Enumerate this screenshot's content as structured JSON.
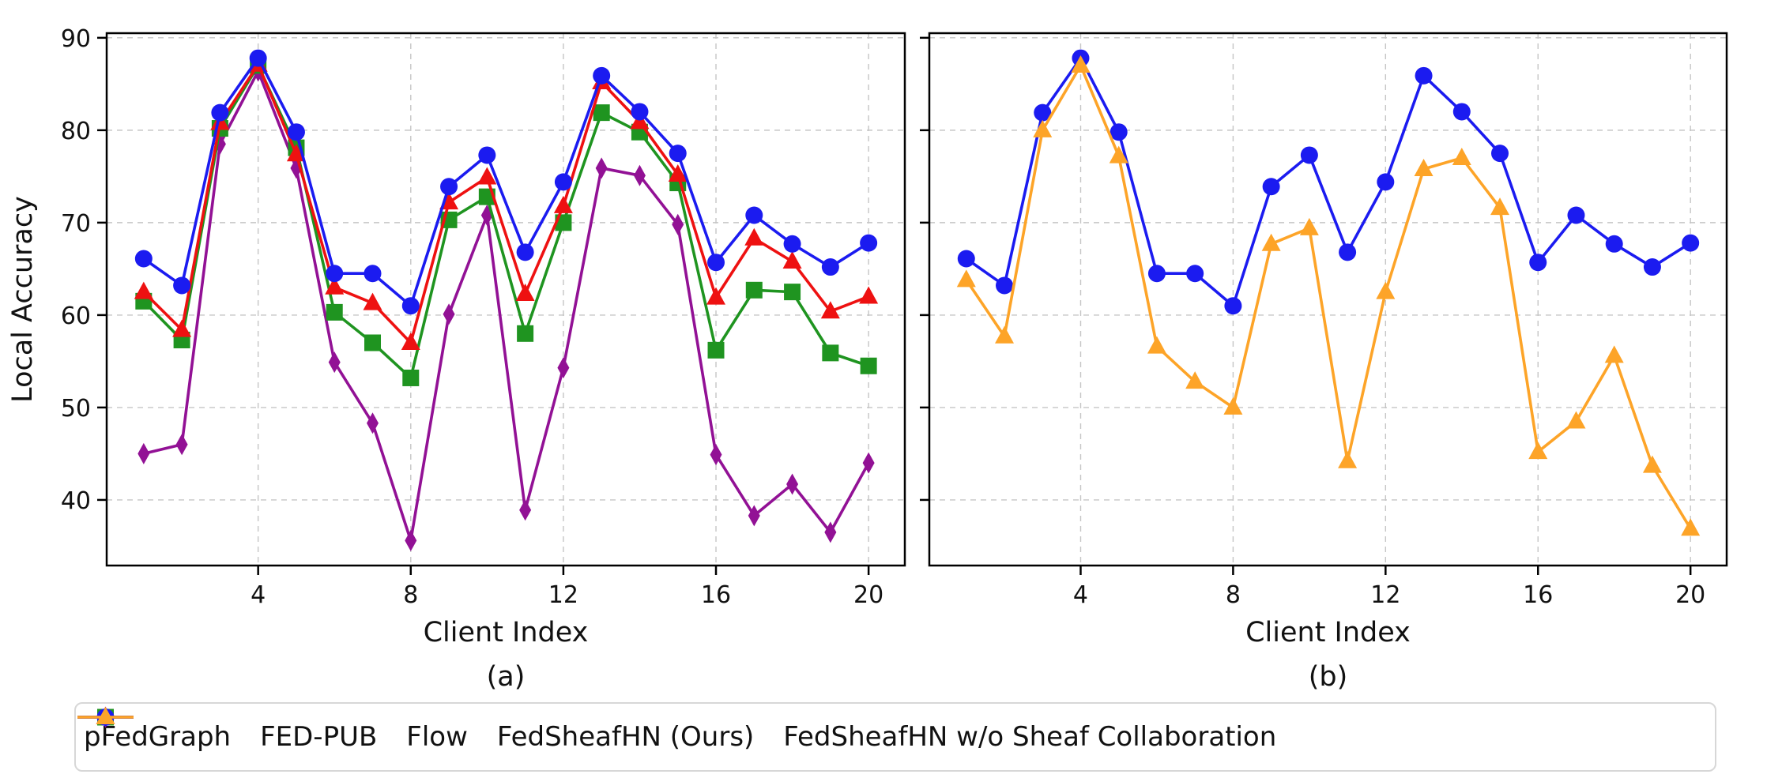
{
  "figure": {
    "ylabel": "Local Accuracy",
    "xlabel": "Client Index"
  },
  "chart_data": [
    {
      "type": "line",
      "subplot_label": "(a)",
      "xlabel": "Client Index",
      "ylabel": "Local Accuracy",
      "x": [
        1,
        2,
        3,
        4,
        5,
        6,
        7,
        8,
        9,
        10,
        11,
        12,
        13,
        14,
        15,
        16,
        17,
        18,
        19,
        20
      ],
      "xticks": [
        4,
        8,
        12,
        16,
        20
      ],
      "yticks": [
        40,
        50,
        60,
        70,
        80,
        90
      ],
      "xlim": [
        0.03,
        20.95
      ],
      "ylim": [
        32.9,
        90.5
      ],
      "grid": true,
      "show_ytick_labels": true,
      "series": [
        {
          "name": "pFedGraph",
          "color": "#921195",
          "marker": "thin-diamond",
          "values": [
            45.0,
            46.0,
            78.5,
            86.4,
            75.9,
            54.9,
            48.3,
            35.6,
            60.1,
            70.8,
            38.9,
            54.3,
            75.9,
            75.1,
            69.8,
            44.9,
            38.3,
            41.7,
            36.5,
            44.0
          ]
        },
        {
          "name": "FED-PUB",
          "color": "#1f9420",
          "marker": "square",
          "values": [
            61.5,
            57.3,
            80.2,
            87.0,
            78.1,
            60.3,
            57.0,
            53.2,
            70.3,
            72.8,
            58.0,
            70.0,
            81.9,
            79.8,
            74.3,
            56.2,
            62.7,
            62.5,
            55.9,
            54.5
          ]
        },
        {
          "name": "Flow",
          "color": "#ee1111",
          "marker": "triangle",
          "values": [
            62.5,
            58.4,
            80.8,
            87.1,
            77.4,
            63.0,
            61.3,
            57.0,
            72.2,
            74.9,
            62.3,
            71.8,
            85.2,
            80.9,
            75.2,
            61.9,
            68.3,
            65.8,
            60.4,
            62.0
          ]
        },
        {
          "name": "FedSheafHN (Ours)",
          "color": "#1b1bf0",
          "marker": "circle",
          "values": [
            66.1,
            63.2,
            81.9,
            87.8,
            79.8,
            64.5,
            64.5,
            61.0,
            73.9,
            77.3,
            66.8,
            74.4,
            85.9,
            82.0,
            77.5,
            65.7,
            70.8,
            67.7,
            65.2,
            67.8
          ]
        }
      ]
    },
    {
      "type": "line",
      "subplot_label": "(b)",
      "xlabel": "Client Index",
      "ylabel": "",
      "x": [
        1,
        2,
        3,
        4,
        5,
        6,
        7,
        8,
        9,
        10,
        11,
        12,
        13,
        14,
        15,
        16,
        17,
        18,
        19,
        20
      ],
      "xticks": [
        4,
        8,
        12,
        16,
        20
      ],
      "yticks": [
        40,
        50,
        60,
        70,
        80,
        90
      ],
      "xlim": [
        0.03,
        20.95
      ],
      "ylim": [
        32.9,
        90.5
      ],
      "grid": true,
      "show_ytick_labels": false,
      "series": [
        {
          "name": "FedSheafHN (Ours)",
          "color": "#1b1bf0",
          "marker": "circle",
          "values": [
            66.1,
            63.2,
            81.9,
            87.8,
            79.8,
            64.5,
            64.5,
            61.0,
            73.9,
            77.3,
            66.8,
            74.4,
            85.9,
            82.0,
            77.5,
            65.7,
            70.8,
            67.7,
            65.2,
            67.8
          ]
        },
        {
          "name": "FedSheafHN w/o Sheaf Collaboration",
          "color": "#fda428",
          "marker": "triangle",
          "values": [
            63.8,
            57.7,
            80.0,
            87.0,
            77.2,
            56.6,
            52.8,
            50.0,
            67.7,
            69.4,
            44.2,
            62.5,
            75.8,
            77.0,
            71.6,
            45.2,
            48.5,
            55.6,
            43.7,
            36.9
          ]
        }
      ]
    }
  ],
  "legend": {
    "entries": [
      {
        "label": "pFedGraph",
        "color": "#921195",
        "marker": "thin-diamond"
      },
      {
        "label": "FED-PUB",
        "color": "#1f9420",
        "marker": "square"
      },
      {
        "label": "Flow",
        "color": "#ee1111",
        "marker": "triangle"
      },
      {
        "label": "FedSheafHN (Ours)",
        "color": "#1b1bf0",
        "marker": "circle"
      },
      {
        "label": "FedSheafHN w/o Sheaf Collaboration",
        "color": "#fda428",
        "marker": "triangle"
      }
    ]
  }
}
